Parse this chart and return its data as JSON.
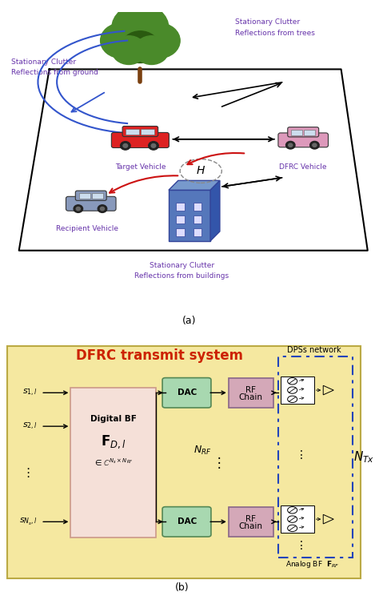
{
  "fig_width": 4.74,
  "fig_height": 7.49,
  "dpi": 100,
  "panel_a_label": "(a)",
  "panel_b_label": "(b)",
  "panel_b_title": "DFRC transmit system",
  "panel_b_title_color": "#cc2200",
  "panel_b_bg_color": "#f5e8a0",
  "digital_bf_bg": "#f5e0d8",
  "dac_bg": "#a8d8b0",
  "rf_chain_bg": "#d4a8b8",
  "blue_curve_color": "#3355cc",
  "red_arrow_color": "#cc1111",
  "purple_text_color": "#6633aa",
  "tree_green": "#4a8a2a",
  "tree_dark": "#2a5a10",
  "building_blue": "#5577bb",
  "dashed_border_color": "#2244bb"
}
